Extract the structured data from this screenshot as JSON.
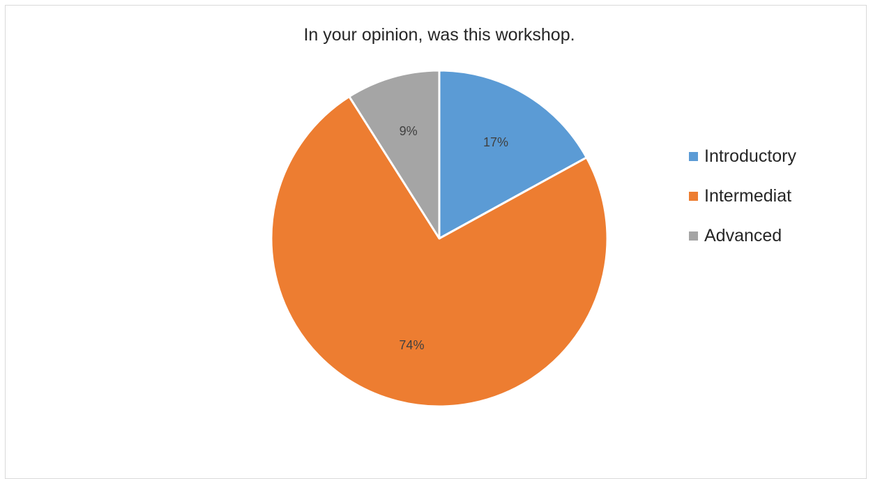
{
  "chart_data": {
    "type": "pie",
    "title": "In your opinion, was this workshop.",
    "categories": [
      "Introductory",
      "Intermediat",
      "Advanced"
    ],
    "values": [
      17,
      74,
      9
    ],
    "data_labels": [
      "17%",
      "74%",
      "9%"
    ],
    "colors": [
      "#5b9bd5",
      "#ed7d31",
      "#a5a5a5"
    ],
    "legend_position": "right"
  }
}
